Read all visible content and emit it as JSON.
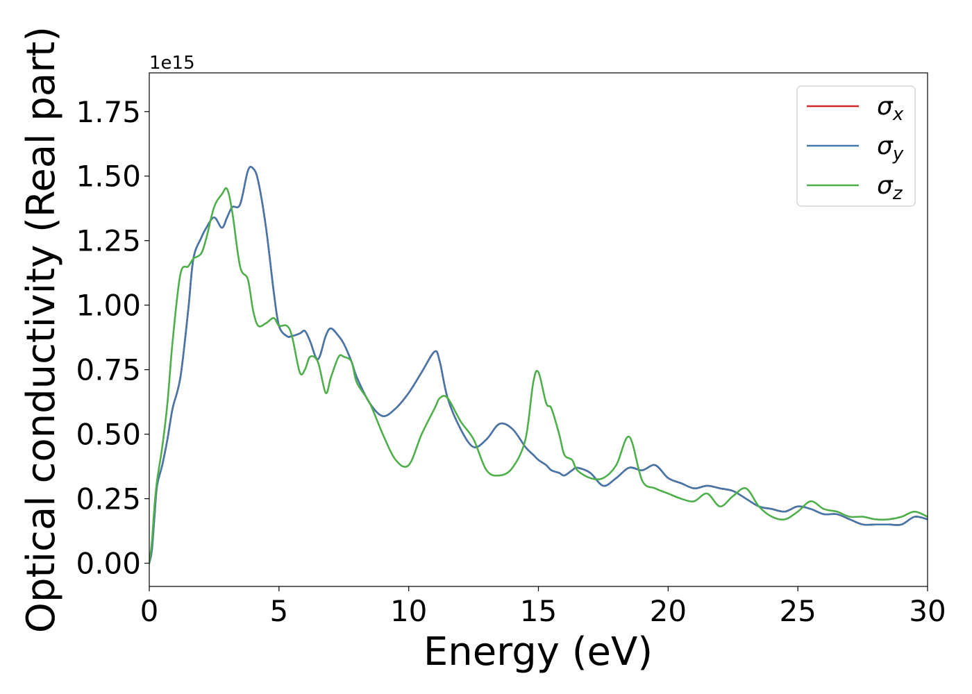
{
  "chart_data": {
    "type": "line",
    "title": "",
    "xlabel": "Energy (eV)",
    "ylabel": "Optical conductivity (Real part)",
    "y_offset_text": "1e15",
    "y_scale_factor": 1000000000000000.0,
    "xlim": [
      0,
      30
    ],
    "ylim": [
      -0.09,
      1.9
    ],
    "x_ticks": [
      0,
      5,
      10,
      15,
      20,
      25,
      30
    ],
    "x_tick_labels": [
      "0",
      "5",
      "10",
      "15",
      "20",
      "25",
      "30"
    ],
    "y_ticks": [
      0.0,
      0.25,
      0.5,
      0.75,
      1.0,
      1.25,
      1.5,
      1.75
    ],
    "y_tick_labels": [
      "0.00",
      "0.25",
      "0.50",
      "0.75",
      "1.00",
      "1.25",
      "1.50",
      "1.75"
    ],
    "grid": false,
    "legend_position": "top-right",
    "x": [
      0,
      0.1,
      0.2,
      0.3,
      0.5,
      0.7,
      0.9,
      1.2,
      1.5,
      1.7,
      2.0,
      2.2,
      2.5,
      2.8,
      3.0,
      3.2,
      3.5,
      3.8,
      4.0,
      4.2,
      4.5,
      4.8,
      5.0,
      5.3,
      5.5,
      5.8,
      6.0,
      6.2,
      6.5,
      6.8,
      7.0,
      7.3,
      7.5,
      7.8,
      8.0,
      8.5,
      9.0,
      9.5,
      10.0,
      10.5,
      11.0,
      11.2,
      11.5,
      12.0,
      12.5,
      13.0,
      13.5,
      14.0,
      14.5,
      14.8,
      15.0,
      15.3,
      15.5,
      15.8,
      16.0,
      16.3,
      16.5,
      17.0,
      17.5,
      18.0,
      18.5,
      19.0,
      19.5,
      20.0,
      20.5,
      21.0,
      21.5,
      22.0,
      22.5,
      23.0,
      23.5,
      24.0,
      24.5,
      25.0,
      25.5,
      26.0,
      26.5,
      27.0,
      27.5,
      28.0,
      28.5,
      29.0,
      29.5,
      30.0
    ],
    "series": [
      {
        "name": "σx",
        "label_base": "σ",
        "label_sub": "x",
        "color": "#d62728",
        "values": [
          0.0,
          0.05,
          0.18,
          0.3,
          0.38,
          0.48,
          0.6,
          0.72,
          0.98,
          1.18,
          1.26,
          1.3,
          1.34,
          1.3,
          1.34,
          1.38,
          1.39,
          1.52,
          1.53,
          1.48,
          1.3,
          1.05,
          0.92,
          0.88,
          0.88,
          0.89,
          0.9,
          0.86,
          0.79,
          0.88,
          0.91,
          0.88,
          0.85,
          0.78,
          0.72,
          0.62,
          0.57,
          0.6,
          0.66,
          0.74,
          0.82,
          0.78,
          0.64,
          0.52,
          0.45,
          0.48,
          0.54,
          0.52,
          0.45,
          0.42,
          0.4,
          0.38,
          0.36,
          0.35,
          0.34,
          0.36,
          0.37,
          0.35,
          0.3,
          0.33,
          0.37,
          0.36,
          0.38,
          0.33,
          0.31,
          0.29,
          0.3,
          0.29,
          0.28,
          0.25,
          0.22,
          0.21,
          0.2,
          0.22,
          0.21,
          0.19,
          0.19,
          0.17,
          0.15,
          0.15,
          0.15,
          0.15,
          0.18,
          0.17
        ]
      },
      {
        "name": "σy",
        "label_base": "σ",
        "label_sub": "y",
        "color": "#4477aa",
        "values": [
          0.0,
          0.05,
          0.18,
          0.3,
          0.38,
          0.48,
          0.6,
          0.72,
          0.98,
          1.18,
          1.26,
          1.3,
          1.34,
          1.3,
          1.34,
          1.38,
          1.39,
          1.52,
          1.53,
          1.48,
          1.3,
          1.05,
          0.92,
          0.88,
          0.88,
          0.89,
          0.9,
          0.86,
          0.79,
          0.88,
          0.91,
          0.88,
          0.85,
          0.78,
          0.72,
          0.62,
          0.57,
          0.6,
          0.66,
          0.74,
          0.82,
          0.78,
          0.64,
          0.52,
          0.45,
          0.48,
          0.54,
          0.52,
          0.45,
          0.42,
          0.4,
          0.38,
          0.36,
          0.35,
          0.34,
          0.36,
          0.37,
          0.35,
          0.3,
          0.33,
          0.37,
          0.36,
          0.38,
          0.33,
          0.31,
          0.29,
          0.3,
          0.29,
          0.28,
          0.25,
          0.22,
          0.21,
          0.2,
          0.22,
          0.21,
          0.19,
          0.19,
          0.17,
          0.15,
          0.15,
          0.15,
          0.15,
          0.18,
          0.17
        ]
      },
      {
        "name": "σz",
        "label_base": "σ",
        "label_sub": "z",
        "color": "#4daf4a",
        "values": [
          0.0,
          0.08,
          0.22,
          0.32,
          0.45,
          0.62,
          0.86,
          1.12,
          1.15,
          1.18,
          1.2,
          1.26,
          1.38,
          1.43,
          1.45,
          1.36,
          1.15,
          1.1,
          0.98,
          0.92,
          0.93,
          0.95,
          0.92,
          0.92,
          0.88,
          0.74,
          0.75,
          0.8,
          0.78,
          0.66,
          0.72,
          0.8,
          0.8,
          0.78,
          0.7,
          0.62,
          0.5,
          0.4,
          0.38,
          0.5,
          0.6,
          0.64,
          0.64,
          0.55,
          0.48,
          0.36,
          0.34,
          0.37,
          0.48,
          0.7,
          0.74,
          0.62,
          0.6,
          0.5,
          0.42,
          0.4,
          0.36,
          0.33,
          0.33,
          0.38,
          0.49,
          0.32,
          0.29,
          0.27,
          0.25,
          0.24,
          0.27,
          0.22,
          0.26,
          0.29,
          0.22,
          0.18,
          0.17,
          0.2,
          0.24,
          0.21,
          0.2,
          0.18,
          0.18,
          0.17,
          0.17,
          0.18,
          0.2,
          0.18
        ]
      }
    ]
  }
}
